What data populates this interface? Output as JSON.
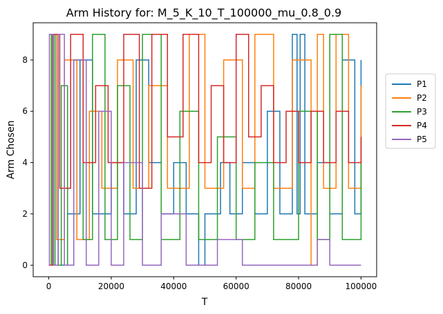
{
  "chart_data": {
    "type": "line",
    "title": "Arm History for: M_5_K_10_T_100000_mu_0.8_0.9",
    "xlabel": "T",
    "ylabel": "Arm Chosen",
    "xlim": [
      -5000,
      105000
    ],
    "ylim": [
      -0.45,
      9.45
    ],
    "xticks": [
      0,
      20000,
      40000,
      60000,
      80000,
      100000
    ],
    "xtick_labels": [
      "0",
      "20000",
      "40000",
      "60000",
      "80000",
      "100000"
    ],
    "yticks": [
      0,
      2,
      4,
      6,
      8
    ],
    "ytick_labels": [
      "0",
      "2",
      "4",
      "6",
      "8"
    ],
    "grid": false,
    "legend_position": "right, outside plot",
    "series": [
      {
        "name": "P1",
        "color": "#1f77b4",
        "points": [
          [
            0,
            0
          ],
          [
            1200,
            9
          ],
          [
            3000,
            0
          ],
          [
            6000,
            2
          ],
          [
            10000,
            8
          ],
          [
            14000,
            2
          ],
          [
            20000,
            4
          ],
          [
            24000,
            2
          ],
          [
            28000,
            8
          ],
          [
            32000,
            4
          ],
          [
            36000,
            2
          ],
          [
            40000,
            4
          ],
          [
            44000,
            2
          ],
          [
            48000,
            0
          ],
          [
            50000,
            2
          ],
          [
            55000,
            4
          ],
          [
            58000,
            2
          ],
          [
            62000,
            4
          ],
          [
            66000,
            2
          ],
          [
            70000,
            6
          ],
          [
            74000,
            2
          ],
          [
            78000,
            9
          ],
          [
            79500,
            2
          ],
          [
            80500,
            9
          ],
          [
            82000,
            2
          ],
          [
            86000,
            4
          ],
          [
            90000,
            2
          ],
          [
            94000,
            8
          ],
          [
            98000,
            2
          ],
          [
            100000,
            8
          ],
          [
            100000,
            2
          ]
        ]
      },
      {
        "name": "P2",
        "color": "#ff7f0e",
        "points": [
          [
            0,
            0
          ],
          [
            1000,
            9
          ],
          [
            2500,
            1
          ],
          [
            5000,
            8
          ],
          [
            9000,
            1
          ],
          [
            13000,
            6
          ],
          [
            17000,
            3
          ],
          [
            22000,
            8
          ],
          [
            27000,
            3
          ],
          [
            32000,
            7
          ],
          [
            38000,
            3
          ],
          [
            45000,
            9
          ],
          [
            50000,
            3
          ],
          [
            56000,
            8
          ],
          [
            62000,
            3
          ],
          [
            66000,
            9
          ],
          [
            72000,
            3
          ],
          [
            78000,
            8
          ],
          [
            84000,
            0
          ],
          [
            86000,
            9
          ],
          [
            88000,
            3
          ],
          [
            92000,
            9
          ],
          [
            96000,
            3
          ],
          [
            100000,
            7
          ],
          [
            100000,
            3
          ]
        ]
      },
      {
        "name": "P3",
        "color": "#2ca02c",
        "points": [
          [
            0,
            0
          ],
          [
            800,
            9
          ],
          [
            2000,
            0
          ],
          [
            4000,
            7
          ],
          [
            6000,
            0
          ],
          [
            8000,
            8
          ],
          [
            11000,
            1
          ],
          [
            14000,
            9
          ],
          [
            18000,
            1
          ],
          [
            22000,
            7
          ],
          [
            26000,
            1
          ],
          [
            30000,
            9
          ],
          [
            36000,
            1
          ],
          [
            42000,
            6
          ],
          [
            48000,
            1
          ],
          [
            54000,
            5
          ],
          [
            60000,
            1
          ],
          [
            66000,
            4
          ],
          [
            72000,
            1
          ],
          [
            80000,
            6
          ],
          [
            86000,
            1
          ],
          [
            90000,
            9
          ],
          [
            94000,
            1
          ],
          [
            100000,
            4
          ],
          [
            100000,
            1
          ]
        ]
      },
      {
        "name": "P4",
        "color": "#d62728",
        "points": [
          [
            0,
            0
          ],
          [
            1500,
            9
          ],
          [
            3500,
            3
          ],
          [
            7000,
            9
          ],
          [
            11000,
            4
          ],
          [
            15000,
            7
          ],
          [
            19000,
            4
          ],
          [
            24000,
            9
          ],
          [
            29000,
            3
          ],
          [
            33000,
            9
          ],
          [
            38000,
            5
          ],
          [
            43000,
            9
          ],
          [
            48000,
            4
          ],
          [
            52000,
            7
          ],
          [
            56000,
            4
          ],
          [
            60000,
            9
          ],
          [
            64000,
            5
          ],
          [
            68000,
            7
          ],
          [
            72000,
            4
          ],
          [
            76000,
            6
          ],
          [
            80000,
            4
          ],
          [
            84000,
            6
          ],
          [
            88000,
            4
          ],
          [
            92000,
            6
          ],
          [
            96000,
            4
          ],
          [
            100000,
            5
          ],
          [
            100000,
            4
          ]
        ]
      },
      {
        "name": "P5",
        "color": "#9467bd",
        "points": [
          [
            0,
            0
          ],
          [
            200,
            9
          ],
          [
            1500,
            0
          ],
          [
            3000,
            9
          ],
          [
            5000,
            0
          ],
          [
            8000,
            8
          ],
          [
            12000,
            0
          ],
          [
            16000,
            6
          ],
          [
            20000,
            0
          ],
          [
            24000,
            4
          ],
          [
            30000,
            0
          ],
          [
            36000,
            2
          ],
          [
            44000,
            0
          ],
          [
            54000,
            1
          ],
          [
            62000,
            0
          ],
          [
            70000,
            0
          ],
          [
            80000,
            0
          ],
          [
            86000,
            1
          ],
          [
            90000,
            0
          ],
          [
            100000,
            0
          ]
        ]
      }
    ]
  }
}
